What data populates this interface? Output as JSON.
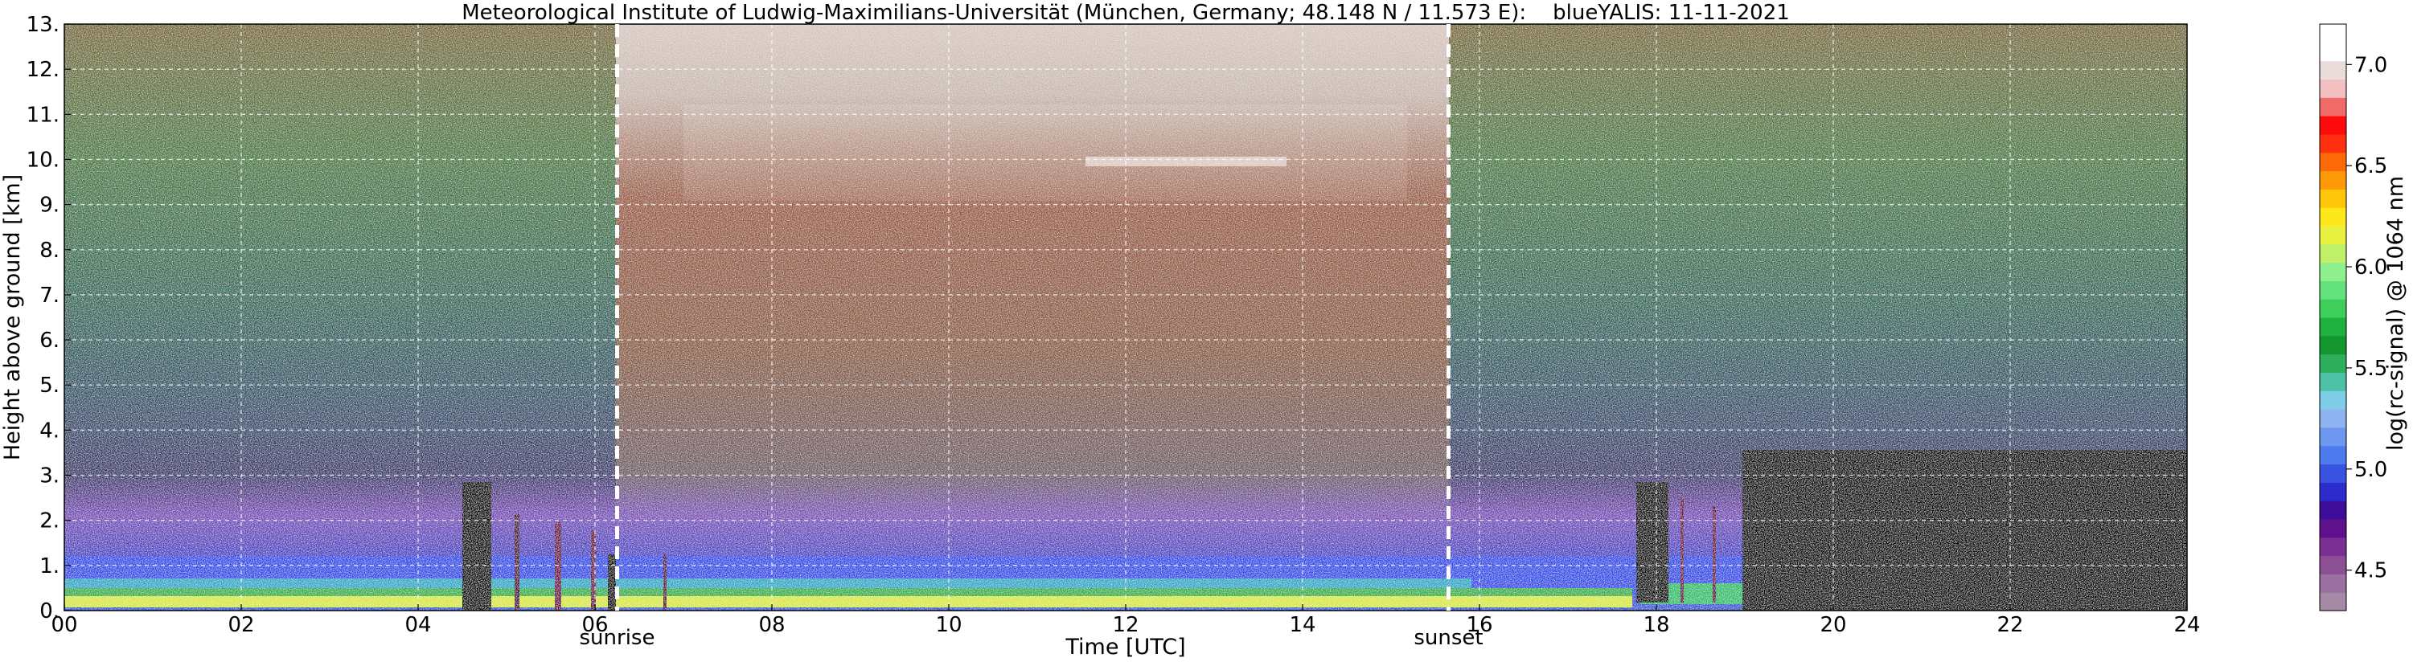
{
  "chart_data": {
    "type": "heatmap",
    "title": "Meteorological Institute of Ludwig-Maximilians-Universität (München, Germany; 48.148 N / 11.573 E):    blueYALIS: 11-11-2021",
    "xlabel": "Time [UTC]",
    "ylabel": "Height above ground [km]",
    "colorbar_label": "log(rc-signal) @ 1064 nm",
    "xlim": [
      0,
      24
    ],
    "ylim": [
      0,
      13
    ],
    "x_ticks": [
      0,
      2,
      4,
      6,
      8,
      10,
      12,
      14,
      16,
      18,
      20,
      22,
      24
    ],
    "x_tick_labels": [
      "00",
      "02",
      "04",
      "06",
      "08",
      "10",
      "12",
      "14",
      "16",
      "18",
      "20",
      "22",
      "24"
    ],
    "y_ticks": [
      0,
      1,
      2,
      3,
      4,
      5,
      6,
      7,
      8,
      9,
      10,
      11,
      12,
      13
    ],
    "y_tick_labels": [
      "0.",
      "1.",
      "2.",
      "3.",
      "4.",
      "5.",
      "6.",
      "7.",
      "8.",
      "9.",
      "10.",
      "11.",
      "12.",
      "13."
    ],
    "grid": true,
    "colorbar": {
      "range": [
        4.3,
        7.2
      ],
      "ticks": [
        4.5,
        5.0,
        5.5,
        6.0,
        6.5,
        7.0
      ],
      "tick_labels": [
        "4.5",
        "5.0",
        "5.5",
        "6.0",
        "6.5",
        "7.0"
      ],
      "colors": [
        "#a58aa5",
        "#9a70a0",
        "#8c4f96",
        "#7a2f92",
        "#5f108c",
        "#3d0d9a",
        "#2c2ccc",
        "#3a52e0",
        "#4d7aec",
        "#6e98f0",
        "#8fb2f0",
        "#7fcde8",
        "#4ec2a8",
        "#2fae5e",
        "#15952e",
        "#1fb040",
        "#3dcf5a",
        "#64e27e",
        "#8ff08e",
        "#bff06a",
        "#e8f040",
        "#ffe81a",
        "#ffc60a",
        "#ff9a08",
        "#ff6a08",
        "#ff3010",
        "#ff0a0a",
        "#f06a6a",
        "#f2c0c0",
        "#ebdcdc",
        "#ffffff",
        "#ffffff"
      ]
    },
    "markers": [
      {
        "label": "sunrise",
        "x": 6.25
      },
      {
        "label": "sunset",
        "x": 15.65
      }
    ]
  }
}
